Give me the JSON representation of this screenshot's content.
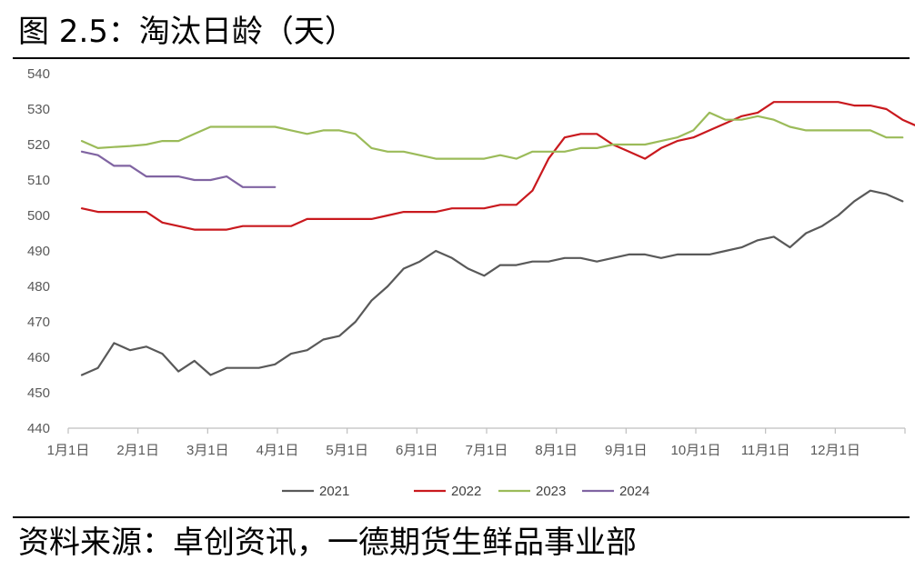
{
  "figure": {
    "title": "图 2.5：淘汰日龄（天）",
    "source": "资料来源：卓创资讯，一德期货生鲜品事业部"
  },
  "chart_data": {
    "type": "line",
    "ylim": [
      440,
      540
    ],
    "y_ticks": [
      "440",
      "450",
      "460",
      "470",
      "480",
      "490",
      "500",
      "510",
      "520",
      "530",
      "540"
    ],
    "x_ticks": [
      "1月1日",
      "2月1日",
      "3月1日",
      "4月1日",
      "5月1日",
      "6月1日",
      "7月1日",
      "8月1日",
      "9月1日",
      "10月1日",
      "11月1日",
      "12月1日"
    ],
    "legend_position": "bottom",
    "grid": false,
    "series": [
      {
        "name": "2021",
        "color": "#595959",
        "values": [
          455,
          457,
          464,
          462,
          463,
          461,
          456,
          459,
          455,
          457,
          457,
          457,
          458,
          461,
          462,
          465,
          466,
          470,
          476,
          480,
          485,
          487,
          490,
          488,
          485,
          483,
          486,
          486,
          487,
          487,
          488,
          488,
          487,
          488,
          489,
          489,
          488,
          489,
          489,
          489,
          490,
          491,
          493,
          494,
          491,
          495,
          497,
          500,
          504,
          507,
          506,
          504
        ]
      },
      {
        "name": "2022",
        "color": "#c9191e",
        "values": [
          502,
          501,
          501,
          501,
          501,
          498,
          497,
          496,
          496,
          496,
          497,
          497,
          497,
          497,
          499,
          499,
          499,
          499,
          499,
          500,
          501,
          501,
          501,
          502,
          502,
          502,
          503,
          503,
          507,
          516,
          522,
          523,
          523,
          520,
          518,
          516,
          519,
          521,
          522,
          524,
          526,
          528,
          529,
          532,
          532,
          532,
          532,
          532,
          531,
          531,
          530,
          527,
          525
        ]
      },
      {
        "name": "2023",
        "color": "#9bbb59",
        "values": [
          521,
          519,
          519.3,
          519.6,
          520,
          521,
          521,
          523,
          525,
          525,
          525,
          525,
          525,
          524,
          523,
          524,
          524,
          523,
          519,
          518,
          518,
          517,
          516,
          516,
          516,
          516,
          517,
          516,
          518,
          518,
          518,
          519,
          519,
          520,
          520,
          520,
          521,
          522,
          524,
          529,
          527,
          527,
          528,
          527,
          525,
          524,
          524,
          524,
          524,
          524,
          522,
          522
        ]
      },
      {
        "name": "2024",
        "color": "#8064a2",
        "values": [
          518,
          517,
          514,
          514,
          511,
          511,
          511,
          510,
          510,
          511,
          508,
          508,
          508
        ]
      }
    ]
  }
}
